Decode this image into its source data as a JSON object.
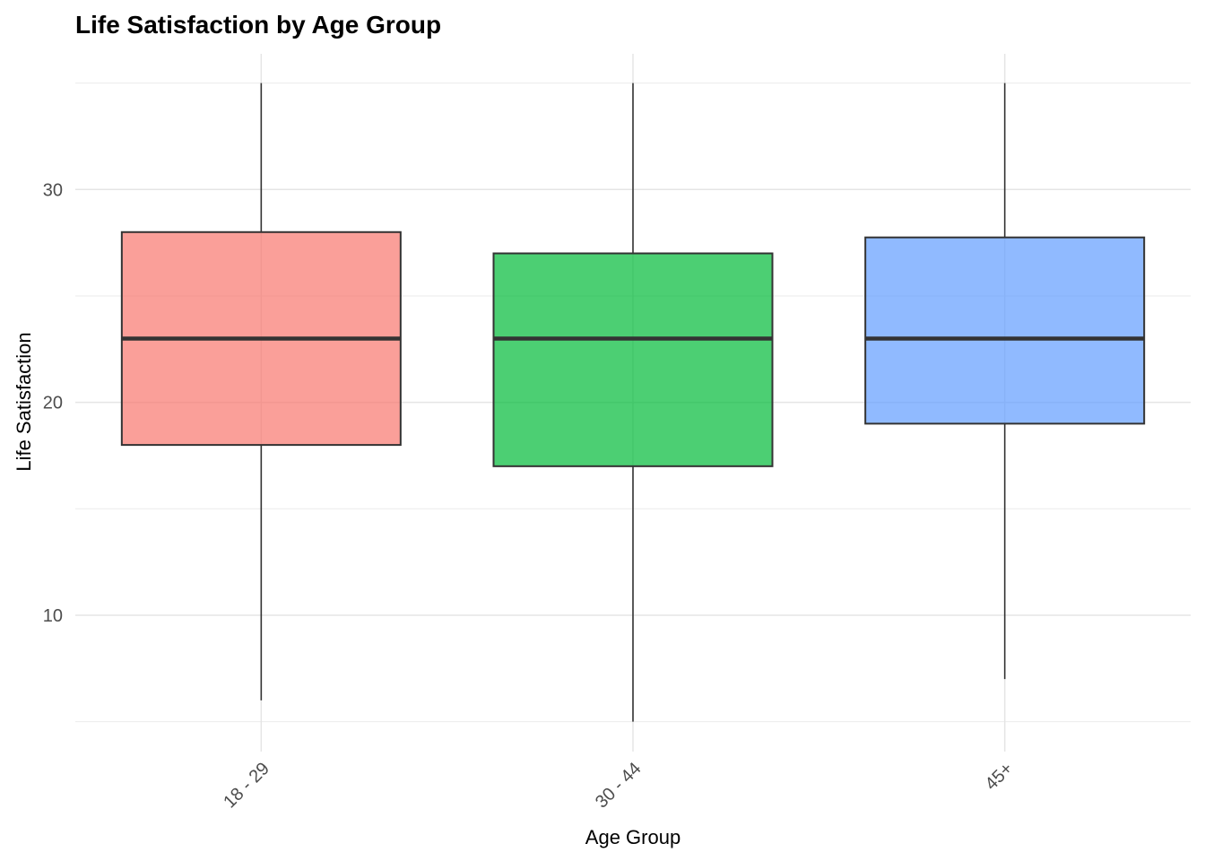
{
  "chart_data": {
    "type": "box",
    "title": "Life Satisfaction by Age Group",
    "xlabel": "Age Group",
    "ylabel": "Life Satisfaction",
    "ylim": [
      5,
      35
    ],
    "yticks": [
      10,
      20,
      30
    ],
    "yticks_labels": [
      "10",
      "20",
      "30"
    ],
    "y_minor_gridlines": [
      5,
      15,
      25,
      35
    ],
    "grid": true,
    "legend": "none",
    "categories": [
      "18 - 29",
      "30 - 44",
      "45+"
    ],
    "boxes": [
      {
        "category": "18 - 29",
        "min": 6,
        "q1": 18,
        "median": 23,
        "q3": 28,
        "max": 35,
        "color": "#F8766D"
      },
      {
        "category": "30 - 44",
        "min": 5,
        "q1": 17,
        "median": 23,
        "q3": 27,
        "max": 35,
        "color": "#00BA38"
      },
      {
        "category": "45+",
        "min": 7,
        "q1": 19,
        "median": 23,
        "q3": 27.75,
        "max": 35,
        "color": "#619CFF"
      }
    ],
    "box_fill_opacity": 0.7,
    "outline_color": "#333333",
    "tick_label_rotation_deg": -45
  }
}
